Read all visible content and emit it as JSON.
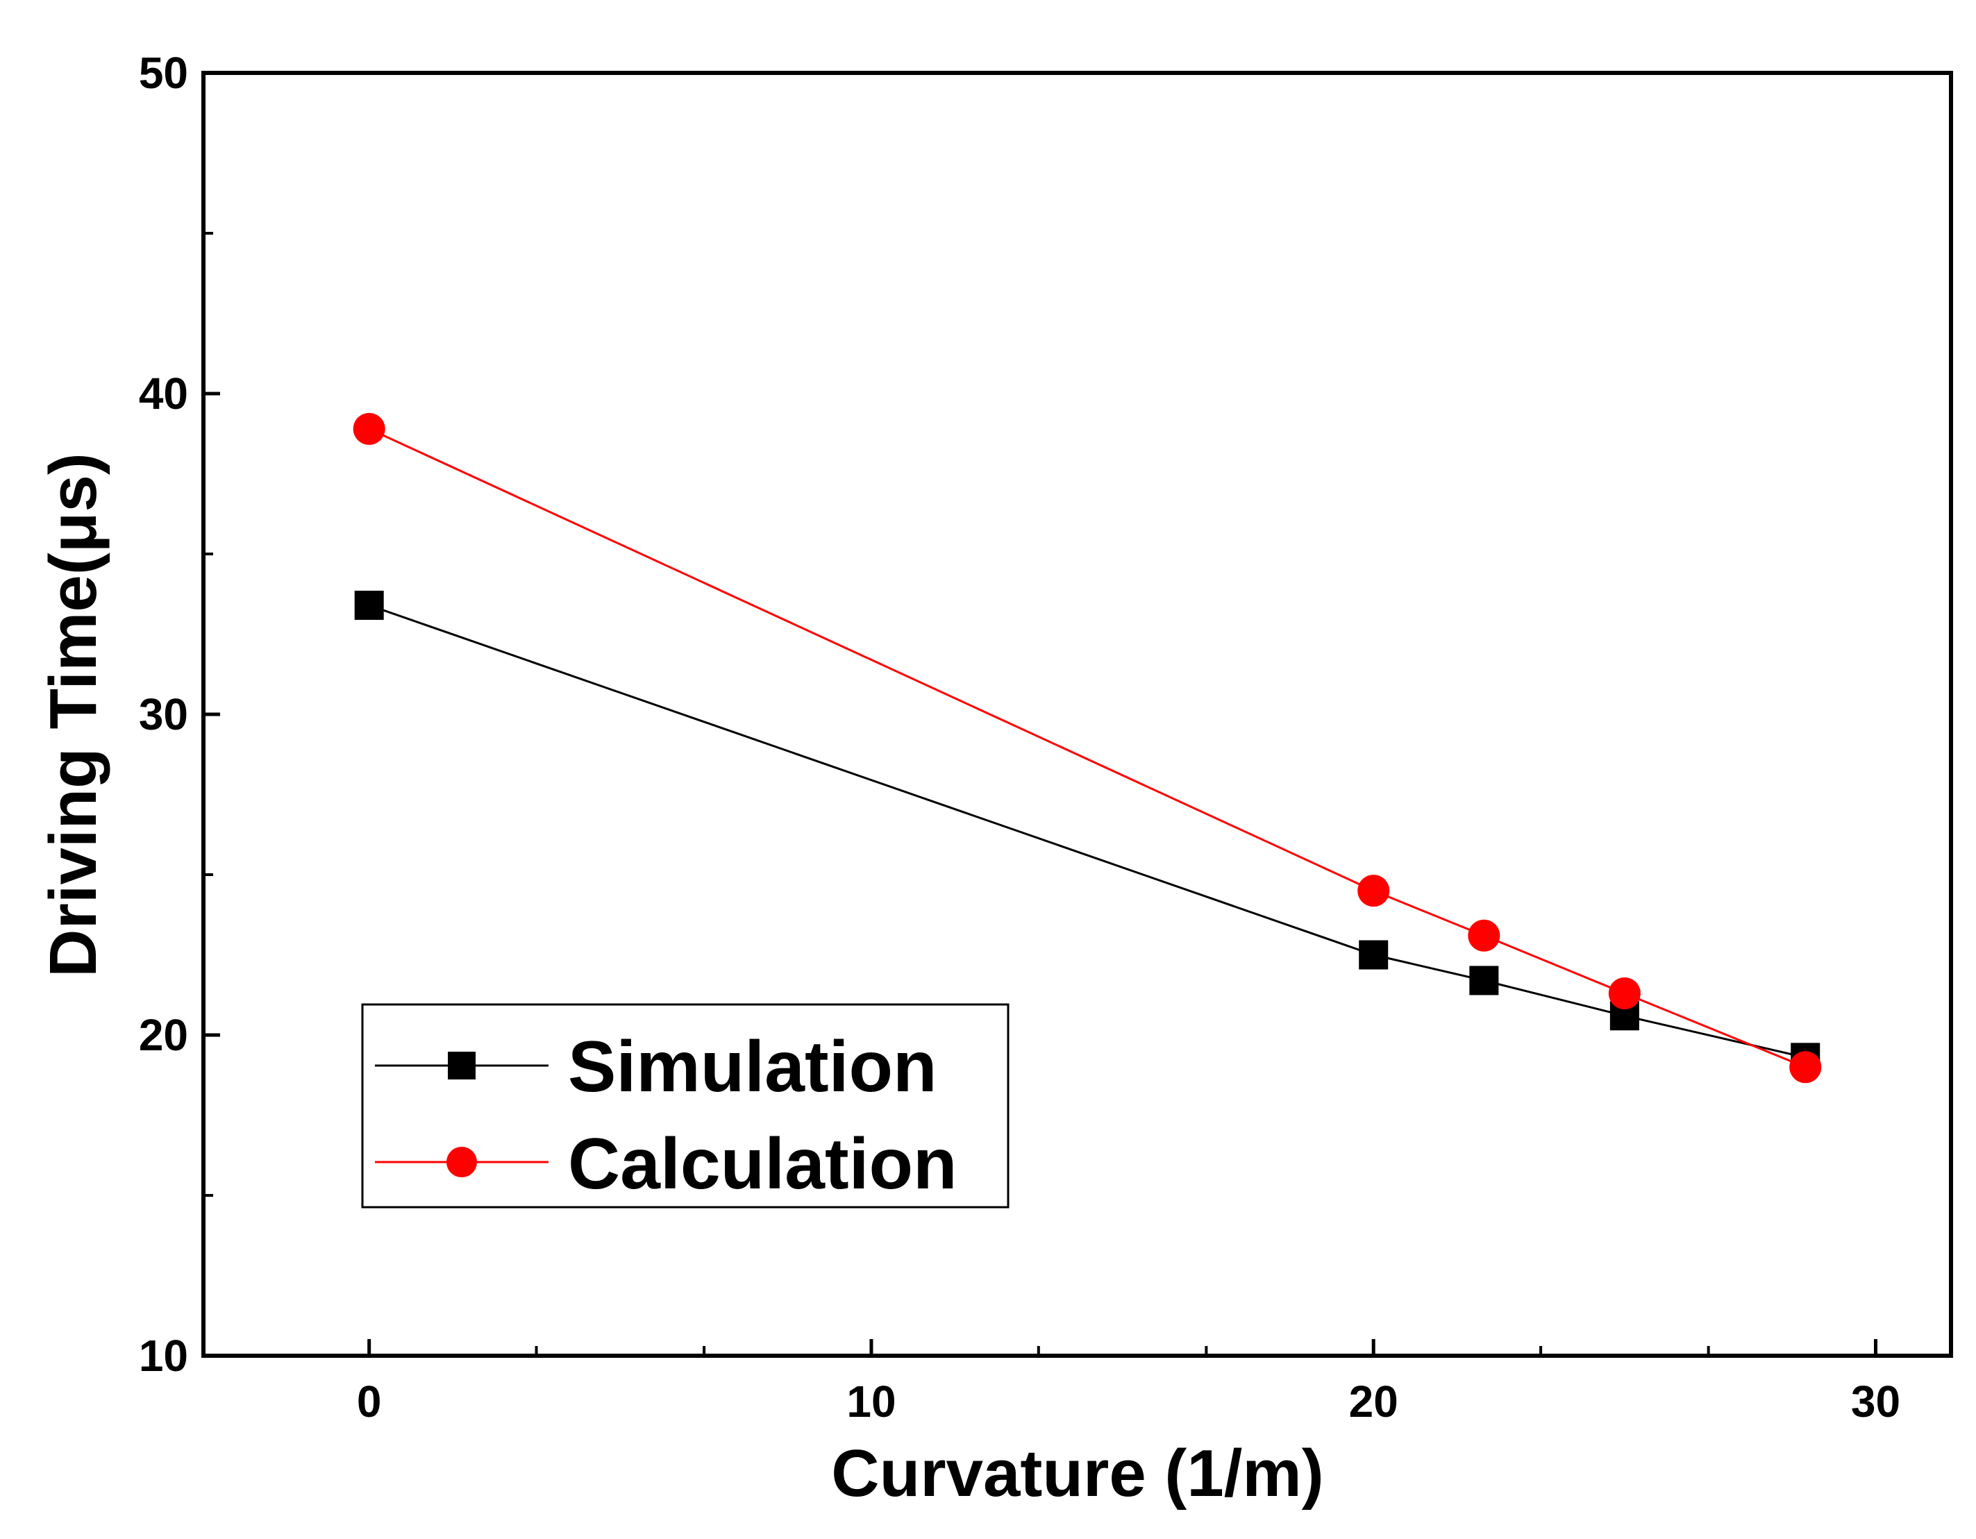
{
  "chart_data": {
    "type": "line",
    "title": "",
    "xlabel": "Curvature (1/m)",
    "ylabel": "Driving Time(μs)",
    "xlim": [
      -3.3,
      31.5
    ],
    "ylim": [
      10,
      50
    ],
    "xticks": [
      0,
      10,
      20,
      30
    ],
    "xtick_labels": [
      "0",
      "10",
      "20",
      "30"
    ],
    "x_minor_ticks": [
      3.33,
      6.67,
      13.33,
      16.67,
      23.33,
      26.67
    ],
    "yticks": [
      10,
      20,
      30,
      40,
      50
    ],
    "ytick_labels": [
      "10",
      "20",
      "30",
      "40",
      "50"
    ],
    "y_minor_ticks": [
      15,
      25,
      35,
      45
    ],
    "grid": false,
    "legend_position": "bottom-left",
    "series": [
      {
        "name": "Simulation",
        "color": "#000000",
        "marker": "square",
        "x": [
          0,
          20,
          22.2,
          25,
          28.6
        ],
        "y": [
          33.4,
          22.5,
          21.7,
          20.6,
          19.3
        ]
      },
      {
        "name": "Calculation",
        "color": "#ff0000",
        "marker": "circle",
        "x": [
          0,
          20,
          22.2,
          25,
          28.6
        ],
        "y": [
          38.9,
          24.5,
          23.1,
          21.3,
          19.0
        ]
      }
    ]
  }
}
